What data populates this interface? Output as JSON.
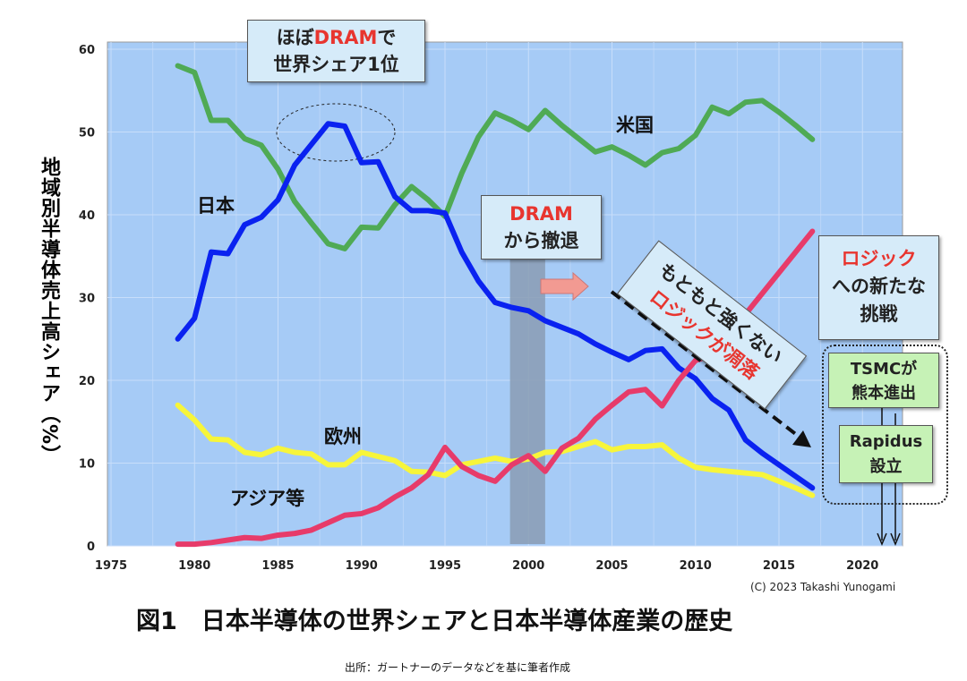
{
  "chart_data": {
    "type": "line",
    "title": "図1　日本半導体の世界シェアと日本半導体産業の歴史",
    "ylabel": "地域別半導体売上高シェア（%）",
    "xlabel": "",
    "xlim": [
      1975,
      2022
    ],
    "ylim": [
      0,
      60
    ],
    "xticks": [
      1975,
      1980,
      1985,
      1990,
      1995,
      2000,
      2005,
      2010,
      2015,
      2020
    ],
    "yticks": [
      0,
      10,
      20,
      30,
      40,
      50,
      60
    ],
    "grid": true,
    "x": [
      1979,
      1980,
      1981,
      1982,
      1983,
      1984,
      1985,
      1986,
      1987,
      1988,
      1989,
      1990,
      1991,
      1992,
      1993,
      1994,
      1995,
      1996,
      1997,
      1998,
      1999,
      2000,
      2001,
      2002,
      2003,
      2004,
      2005,
      2006,
      2007,
      2008,
      2009,
      2010,
      2011,
      2012,
      2013,
      2014,
      2015,
      2016,
      2017
    ],
    "series": [
      {
        "name": "米国",
        "color": "#4faa55",
        "values": [
          58,
          57.2,
          51.4,
          51.4,
          49.2,
          48.4,
          45.5,
          41.6,
          39,
          36.5,
          35.9,
          38.5,
          38.4,
          41.2,
          43.4,
          41.8,
          39.8,
          45,
          49.4,
          52.3,
          51.4,
          50.3,
          52.6,
          50.8,
          49.2,
          47.6,
          48.2,
          47.2,
          46,
          47.5,
          48,
          49.6,
          53,
          52.2,
          53.6,
          53.8,
          52.4,
          50.8,
          49.1
        ]
      },
      {
        "name": "日本",
        "color": "#0a22f0",
        "values": [
          25,
          27.5,
          35.5,
          35.3,
          38.8,
          39.7,
          41.8,
          46,
          48.5,
          51,
          50.7,
          46.3,
          46.4,
          42.2,
          40.5,
          40.5,
          40.2,
          35.5,
          32,
          29.4,
          28.8,
          28.4,
          27.2,
          26.4,
          25.6,
          24.4,
          23.4,
          22.5,
          23.6,
          23.8,
          21.5,
          20.2,
          17.8,
          16.4,
          12.8,
          11.2,
          9.8,
          8.4,
          7
        ]
      },
      {
        "name": "欧州",
        "color": "#f7f53a",
        "values": [
          17,
          15.2,
          12.9,
          12.8,
          11.3,
          11,
          11.8,
          11.3,
          11.1,
          9.8,
          9.8,
          11.3,
          10.8,
          10.3,
          9,
          8.9,
          8.5,
          9.8,
          10.2,
          10.6,
          10.2,
          10.5,
          11.3,
          11.4,
          12,
          12.6,
          11.6,
          12,
          12,
          12.2,
          10.6,
          9.5,
          9.2,
          9,
          8.8,
          8.6,
          7.8,
          7,
          6.1
        ]
      },
      {
        "name": "アジア等",
        "color": "#e73b6a",
        "values": [
          0.2,
          0.2,
          0.4,
          0.7,
          1,
          0.9,
          1.3,
          1.5,
          1.9,
          2.8,
          3.7,
          3.9,
          4.6,
          5.9,
          7,
          8.6,
          11.9,
          9.6,
          8.5,
          7.8,
          9.8,
          10.9,
          9,
          11.8,
          13,
          15.3,
          17,
          18.6,
          18.9,
          16.9,
          20,
          22.4,
          23,
          25,
          28,
          30.5,
          33,
          35.5,
          38
        ]
      }
    ],
    "shaded_period": [
      1999,
      2001
    ],
    "annotations": {
      "top_box": {
        "pre": "ほぼ",
        "red": "DRAM",
        "post": "で",
        "line2": "世界シェア1位"
      },
      "dram_box": {
        "red": "DRAM",
        "line2": "から撤退"
      },
      "logic_decline": {
        "line1": "もともと強くない",
        "red": "ロジックが凋落"
      },
      "logic_box": {
        "red": "ロジック",
        "line2": "への新たな",
        "line3": "挑戦"
      },
      "tsmc_box": {
        "line1": "TSMCが",
        "line2": "熊本進出"
      },
      "rapidus_box": {
        "line1": "Rapidus",
        "line2": "設立"
      }
    },
    "copyright": "(C)  2023 Takashi Yunogami",
    "source": "出所：ガートナーのデータなどを基に筆者作成",
    "bg_color": "#a6cbf6"
  }
}
